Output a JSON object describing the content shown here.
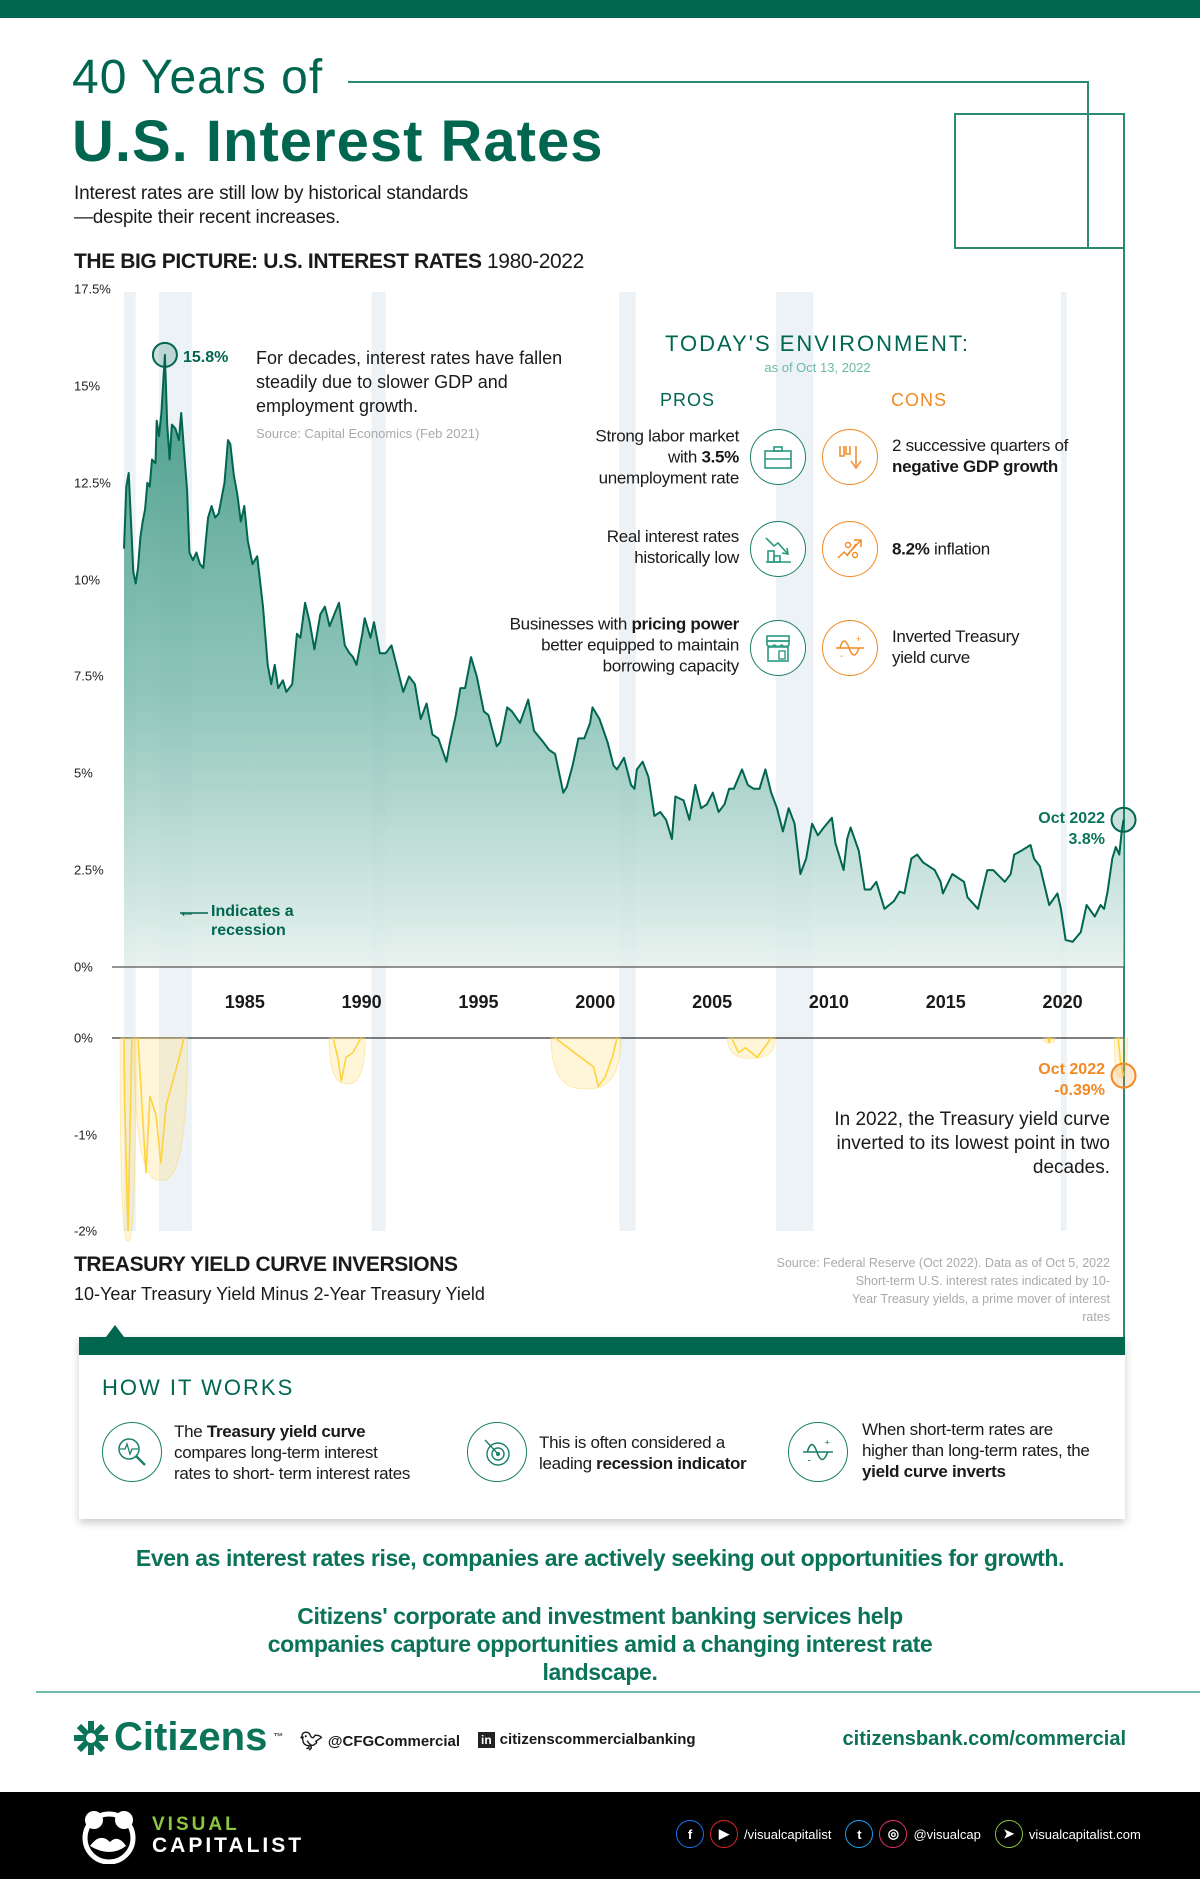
{
  "header": {
    "title_line1": "40 Years of",
    "title_line2": "U.S. Interest Rates",
    "subtitle": "Interest rates are still low by historical standards—despite their recent increases."
  },
  "colors": {
    "brand_green": "#006650",
    "accent_orange": "#f08a24",
    "inversion_yellow": "#ffd23f",
    "recession_band": "#edf2f6"
  },
  "chart_data": [
    {
      "type": "area",
      "title": "THE BIG PICTURE: U.S. INTEREST RATES",
      "title_years": "1980-2022",
      "ylim": [
        0,
        17.5
      ],
      "y_ticks": [
        "17.5%",
        "15%",
        "12.5%",
        "10%",
        "7.5%",
        "5%",
        "2.5%",
        "0%"
      ],
      "y_tick_values": [
        17.5,
        15,
        12.5,
        10,
        7.5,
        5,
        2.5,
        0
      ],
      "x_ticks": [
        "1985",
        "1990",
        "1995",
        "2000",
        "2005",
        "2010",
        "2015",
        "2020"
      ],
      "xlim": [
        1980,
        2022.8
      ],
      "recessions": [
        [
          1980.0,
          1980.5
        ],
        [
          1981.5,
          1982.9
        ],
        [
          1990.6,
          1991.2
        ],
        [
          2001.2,
          2001.9
        ],
        [
          2007.9,
          2009.5
        ],
        [
          2020.1,
          2020.35
        ]
      ],
      "values": [
        [
          1980.0,
          10.8
        ],
        [
          1980.1,
          12.4
        ],
        [
          1980.2,
          12.75
        ],
        [
          1980.3,
          11.5
        ],
        [
          1980.4,
          10.2
        ],
        [
          1980.5,
          9.9
        ],
        [
          1980.6,
          10.3
        ],
        [
          1980.7,
          11.1
        ],
        [
          1980.8,
          11.5
        ],
        [
          1980.9,
          11.8
        ],
        [
          1981.0,
          12.5
        ],
        [
          1981.1,
          12.4
        ],
        [
          1981.2,
          13.1
        ],
        [
          1981.35,
          13.0
        ],
        [
          1981.4,
          14.1
        ],
        [
          1981.5,
          13.7
        ],
        [
          1981.6,
          14.3
        ],
        [
          1981.7,
          15.3
        ],
        [
          1981.75,
          15.8
        ],
        [
          1981.85,
          14.0
        ],
        [
          1981.95,
          13.1
        ],
        [
          1982.05,
          14.0
        ],
        [
          1982.2,
          13.9
        ],
        [
          1982.35,
          13.6
        ],
        [
          1982.45,
          14.3
        ],
        [
          1982.6,
          13.1
        ],
        [
          1982.7,
          12.3
        ],
        [
          1982.8,
          10.7
        ],
        [
          1982.95,
          10.5
        ],
        [
          1983.1,
          10.7
        ],
        [
          1983.25,
          10.4
        ],
        [
          1983.4,
          10.3
        ],
        [
          1983.5,
          11.0
        ],
        [
          1983.6,
          11.6
        ],
        [
          1983.75,
          11.9
        ],
        [
          1983.9,
          11.6
        ],
        [
          1984.05,
          11.7
        ],
        [
          1984.3,
          12.5
        ],
        [
          1984.45,
          13.6
        ],
        [
          1984.55,
          13.5
        ],
        [
          1984.7,
          12.7
        ],
        [
          1984.85,
          12.2
        ],
        [
          1985.0,
          11.5
        ],
        [
          1985.15,
          11.9
        ],
        [
          1985.3,
          11.0
        ],
        [
          1985.5,
          10.4
        ],
        [
          1985.7,
          10.6
        ],
        [
          1985.95,
          9.3
        ],
        [
          1986.15,
          7.8
        ],
        [
          1986.3,
          7.3
        ],
        [
          1986.45,
          7.8
        ],
        [
          1986.6,
          7.2
        ],
        [
          1986.8,
          7.4
        ],
        [
          1986.95,
          7.1
        ],
        [
          1987.2,
          7.3
        ],
        [
          1987.4,
          8.6
        ],
        [
          1987.55,
          8.5
        ],
        [
          1987.75,
          9.4
        ],
        [
          1987.95,
          8.9
        ],
        [
          1988.15,
          8.2
        ],
        [
          1988.4,
          9.1
        ],
        [
          1988.6,
          9.3
        ],
        [
          1988.8,
          8.8
        ],
        [
          1989.0,
          9.1
        ],
        [
          1989.2,
          9.4
        ],
        [
          1989.45,
          8.3
        ],
        [
          1989.65,
          8.1
        ],
        [
          1989.8,
          8.0
        ],
        [
          1989.95,
          7.8
        ],
        [
          1990.2,
          8.6
        ],
        [
          1990.3,
          9.0
        ],
        [
          1990.55,
          8.5
        ],
        [
          1990.7,
          8.9
        ],
        [
          1990.95,
          8.1
        ],
        [
          1991.2,
          8.1
        ],
        [
          1991.45,
          8.3
        ],
        [
          1991.7,
          7.7
        ],
        [
          1991.95,
          7.1
        ],
        [
          1992.2,
          7.5
        ],
        [
          1992.45,
          7.3
        ],
        [
          1992.7,
          6.4
        ],
        [
          1992.95,
          6.8
        ],
        [
          1993.2,
          6.0
        ],
        [
          1993.45,
          5.9
        ],
        [
          1993.8,
          5.3
        ],
        [
          1993.95,
          5.8
        ],
        [
          1994.2,
          6.5
        ],
        [
          1994.4,
          7.2
        ],
        [
          1994.6,
          7.2
        ],
        [
          1994.85,
          8.0
        ],
        [
          1995.1,
          7.5
        ],
        [
          1995.4,
          6.6
        ],
        [
          1995.6,
          6.5
        ],
        [
          1995.95,
          5.7
        ],
        [
          1996.1,
          5.8
        ],
        [
          1996.4,
          6.7
        ],
        [
          1996.6,
          6.6
        ],
        [
          1996.95,
          6.3
        ],
        [
          1997.3,
          6.9
        ],
        [
          1997.55,
          6.1
        ],
        [
          1997.95,
          5.8
        ],
        [
          1998.2,
          5.6
        ],
        [
          1998.45,
          5.5
        ],
        [
          1998.8,
          4.5
        ],
        [
          1998.95,
          4.65
        ],
        [
          1999.2,
          5.2
        ],
        [
          1999.45,
          5.9
        ],
        [
          1999.7,
          5.9
        ],
        [
          1999.95,
          6.3
        ],
        [
          2000.05,
          6.7
        ],
        [
          2000.35,
          6.4
        ],
        [
          2000.7,
          5.8
        ],
        [
          2000.95,
          5.2
        ],
        [
          2001.1,
          5.1
        ],
        [
          2001.4,
          5.4
        ],
        [
          2001.7,
          4.7
        ],
        [
          2001.85,
          4.6
        ],
        [
          2001.95,
          5.1
        ],
        [
          2002.2,
          5.3
        ],
        [
          2002.45,
          4.9
        ],
        [
          2002.7,
          3.9
        ],
        [
          2002.95,
          4.0
        ],
        [
          2003.2,
          3.8
        ],
        [
          2003.45,
          3.3
        ],
        [
          2003.6,
          4.4
        ],
        [
          2003.95,
          4.3
        ],
        [
          2004.2,
          3.8
        ],
        [
          2004.45,
          4.7
        ],
        [
          2004.7,
          4.1
        ],
        [
          2004.95,
          4.2
        ],
        [
          2005.2,
          4.5
        ],
        [
          2005.45,
          4.0
        ],
        [
          2005.7,
          4.2
        ],
        [
          2005.9,
          4.6
        ],
        [
          2006.1,
          4.6
        ],
        [
          2006.45,
          5.1
        ],
        [
          2006.7,
          4.7
        ],
        [
          2006.95,
          4.6
        ],
        [
          2007.2,
          4.6
        ],
        [
          2007.45,
          5.1
        ],
        [
          2007.7,
          4.5
        ],
        [
          2007.95,
          4.1
        ],
        [
          2008.2,
          3.5
        ],
        [
          2008.45,
          4.1
        ],
        [
          2008.7,
          3.7
        ],
        [
          2008.95,
          2.4
        ],
        [
          2009.2,
          2.8
        ],
        [
          2009.45,
          3.7
        ],
        [
          2009.7,
          3.4
        ],
        [
          2009.95,
          3.6
        ],
        [
          2010.3,
          3.85
        ],
        [
          2010.45,
          3.2
        ],
        [
          2010.8,
          2.5
        ],
        [
          2010.95,
          3.3
        ],
        [
          2011.1,
          3.6
        ],
        [
          2011.45,
          3.0
        ],
        [
          2011.7,
          2.0
        ],
        [
          2011.95,
          2.0
        ],
        [
          2012.2,
          2.2
        ],
        [
          2012.55,
          1.5
        ],
        [
          2012.95,
          1.7
        ],
        [
          2013.2,
          1.95
        ],
        [
          2013.4,
          1.9
        ],
        [
          2013.7,
          2.8
        ],
        [
          2013.95,
          2.9
        ],
        [
          2014.2,
          2.7
        ],
        [
          2014.7,
          2.5
        ],
        [
          2014.95,
          2.2
        ],
        [
          2015.05,
          1.9
        ],
        [
          2015.45,
          2.4
        ],
        [
          2015.95,
          2.2
        ],
        [
          2016.1,
          1.8
        ],
        [
          2016.55,
          1.5
        ],
        [
          2016.95,
          2.5
        ],
        [
          2017.2,
          2.5
        ],
        [
          2017.7,
          2.2
        ],
        [
          2017.95,
          2.4
        ],
        [
          2018.1,
          2.9
        ],
        [
          2018.4,
          3.0
        ],
        [
          2018.8,
          3.15
        ],
        [
          2018.95,
          2.8
        ],
        [
          2019.2,
          2.6
        ],
        [
          2019.6,
          1.6
        ],
        [
          2019.95,
          1.9
        ],
        [
          2020.1,
          1.5
        ],
        [
          2020.3,
          0.7
        ],
        [
          2020.6,
          0.65
        ],
        [
          2020.95,
          0.9
        ],
        [
          2021.2,
          1.6
        ],
        [
          2021.55,
          1.3
        ],
        [
          2021.8,
          1.6
        ],
        [
          2021.95,
          1.5
        ],
        [
          2022.1,
          1.95
        ],
        [
          2022.3,
          2.8
        ],
        [
          2022.45,
          3.1
        ],
        [
          2022.6,
          2.9
        ],
        [
          2022.7,
          3.5
        ],
        [
          2022.78,
          3.8
        ]
      ],
      "annotations": {
        "peak_value": "15.8%",
        "peak_year": 1981.75,
        "peak_rate": 15.8,
        "latest_label": "Oct 2022",
        "latest_value": "3.8%",
        "note": "For decades, interest rates have fallen steadily due to slower GDP and employment growth.",
        "note_source": "Source: Capital Economics (Feb 2021)",
        "recession_arrow": "←",
        "recession_legend": "Indicates a recession"
      }
    },
    {
      "type": "area",
      "title": "TREASURY YIELD CURVE INVERSIONS",
      "subtitle": "10-Year Treasury Yield Minus 2-Year Treasury Yield",
      "ylim": [
        -2,
        0
      ],
      "y_ticks": [
        "0%",
        "-1%",
        "-2%"
      ],
      "y_tick_values": [
        0,
        -1,
        -2
      ],
      "inversions": [
        [
          [
            1980.0,
            0
          ],
          [
            1980.02,
            -0.6
          ],
          [
            1980.17,
            -2.0
          ],
          [
            1980.34,
            0
          ]
        ],
        [
          [
            1980.6,
            0
          ],
          [
            1980.94,
            -1.4
          ],
          [
            1981.11,
            -0.6
          ],
          [
            1981.37,
            -0.8
          ],
          [
            1981.58,
            -1.3
          ],
          [
            1981.8,
            -0.7
          ],
          [
            1982.14,
            -0.4
          ],
          [
            1982.48,
            -0.1
          ],
          [
            1982.55,
            0
          ]
        ],
        [
          [
            1988.95,
            0
          ],
          [
            1989.15,
            -0.2
          ],
          [
            1989.3,
            -0.45
          ],
          [
            1989.5,
            -0.2
          ],
          [
            1989.8,
            -0.15
          ],
          [
            1990.15,
            0
          ]
        ],
        [
          [
            1998.45,
            0
          ],
          [
            1999.0,
            -0.1
          ],
          [
            2000.1,
            -0.3
          ],
          [
            2000.3,
            -0.5
          ],
          [
            2000.6,
            -0.4
          ],
          [
            2000.9,
            -0.2
          ],
          [
            2001.1,
            0
          ]
        ],
        [
          [
            2006.0,
            0
          ],
          [
            2006.3,
            -0.15
          ],
          [
            2006.6,
            -0.1
          ],
          [
            2007.1,
            -0.2
          ],
          [
            2007.4,
            -0.1
          ],
          [
            2007.7,
            0
          ]
        ],
        [
          [
            2019.55,
            0
          ],
          [
            2019.6,
            -0.05
          ],
          [
            2019.65,
            0
          ]
        ],
        [
          [
            2022.55,
            0
          ],
          [
            2022.65,
            -0.25
          ],
          [
            2022.78,
            -0.39
          ]
        ]
      ],
      "annotations": {
        "latest_label": "Oct 2022",
        "latest_value": "-0.39%",
        "note": "In 2022, the Treasury yield curve inverted to its lowest point in two decades.",
        "source_line1": "Source: Federal Reserve (Oct 2022). Data as of Oct 5, 2022",
        "source_line2": "Short-term U.S. interest rates indicated by 10-Year Treasury yields, a prime mover of interest rates"
      }
    }
  ],
  "environment": {
    "heading": "TODAY'S ENVIRONMENT:",
    "date": "as of Oct 13, 2022",
    "pros_label": "PROS",
    "cons_label": "CONS",
    "pros": [
      {
        "pre": "Strong labor market with ",
        "bold": "3.5%",
        "post": " unemployment rate",
        "icon": "briefcase-icon"
      },
      {
        "pre": "Real interest rates historically low",
        "bold": "",
        "post": "",
        "icon": "chart-down-icon"
      },
      {
        "pre": "Businesses with ",
        "bold": "pricing power",
        "post": " better equipped to maintain borrowing capacity",
        "icon": "storefront-icon"
      }
    ],
    "cons": [
      {
        "pre": "2 successive quarters of ",
        "bold": "negative GDP growth",
        "post": "",
        "icon": "gdp-down-icon"
      },
      {
        "pre": "",
        "bold": "8.2%",
        "post": " inflation",
        "icon": "percent-up-icon"
      },
      {
        "pre": "Inverted Treasury yield curve",
        "bold": "",
        "post": "",
        "icon": "inverted-curve-icon"
      }
    ]
  },
  "how_it_works": {
    "heading": "HOW IT WORKS",
    "items": [
      {
        "pre": "The ",
        "bold": "Treasury yield curve",
        "post": " compares long-term interest rates to short- term interest rates",
        "icon": "magnifier-chart-icon"
      },
      {
        "pre": "This is often considered a leading ",
        "bold": "recession indicator",
        "post": "",
        "icon": "target-icon"
      },
      {
        "pre": "When short-term rates are higher than long-term rates, the ",
        "bold": "yield curve inverts",
        "post": "",
        "icon": "inverted-curve-icon"
      }
    ]
  },
  "cta": {
    "line1": "Even as interest rates rise, companies are actively seeking out opportunities for growth.",
    "line2": "Citizens' corporate and investment banking services help companies capture opportunities amid a changing interest rate landscape."
  },
  "sponsor": {
    "brand": "Citizens",
    "tm": "™",
    "twitter": "@CFGCommercial",
    "linkedin": "citizenscommercialbanking",
    "url": "citizensbank.com/commercial"
  },
  "footer": {
    "logo_line1": "VISUAL",
    "logo_line2": "CAPITALIST",
    "handle1": "/visualcapitalist",
    "handle2": "@visualcap",
    "site": "visualcapitalist.com"
  }
}
